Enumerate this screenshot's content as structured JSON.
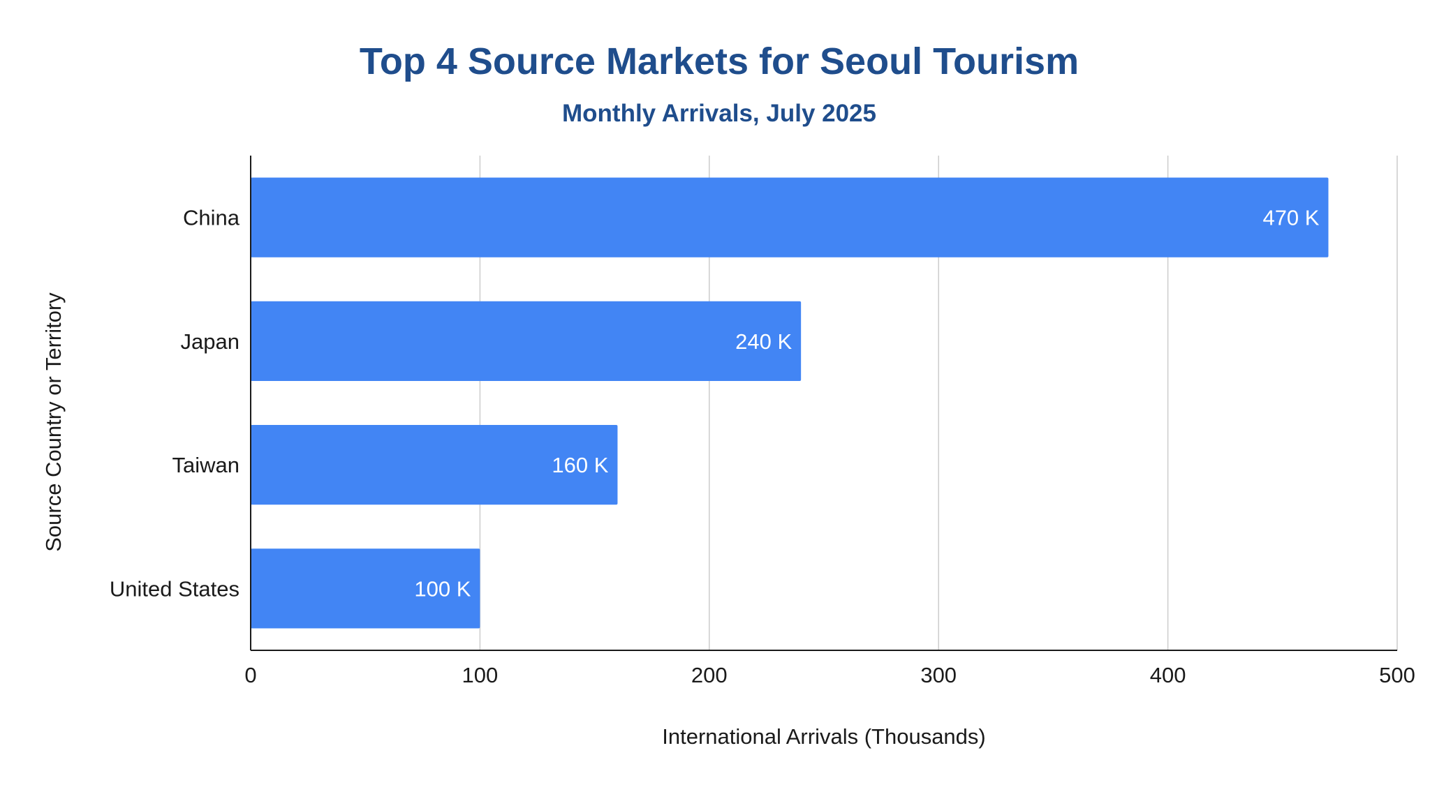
{
  "chart_data": {
    "type": "bar",
    "orientation": "horizontal",
    "title": "Top 4 Source Markets for Seoul Tourism",
    "subtitle": "Monthly Arrivals, July 2025",
    "xlabel": "International Arrivals (Thousands)",
    "ylabel": "Source Country or Territory",
    "categories": [
      "China",
      "Japan",
      "Taiwan",
      "United States"
    ],
    "values": [
      470,
      240,
      160,
      100
    ],
    "data_labels": [
      "470 K",
      "240 K",
      "160 K",
      "100 K"
    ],
    "xlim": [
      0,
      500
    ],
    "xticks": [
      0,
      100,
      200,
      300,
      400,
      500
    ],
    "grid": true,
    "legend": "none",
    "colors": {
      "bar": "#4285f4",
      "title": "#1f4d8c"
    }
  }
}
